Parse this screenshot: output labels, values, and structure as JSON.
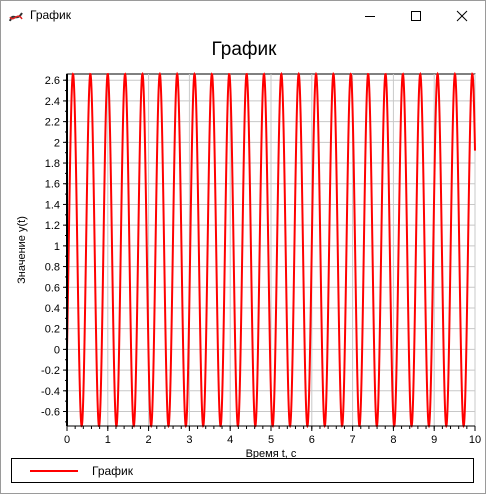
{
  "window": {
    "title": "График",
    "controls": [
      "minimize",
      "maximize",
      "close"
    ]
  },
  "chart_data": {
    "type": "line",
    "title": "График",
    "xlabel": "Время t, с",
    "ylabel": "Значение y(t)",
    "xlim": [
      0,
      10
    ],
    "ylim": [
      -0.74,
      2.66
    ],
    "xticks": [
      "0",
      "1",
      "2",
      "3",
      "4",
      "5",
      "6",
      "7",
      "8",
      "9",
      "10"
    ],
    "yticks": [
      "2.6",
      "2.4",
      "2.2",
      "2",
      "1.8",
      "1.6",
      "1.4",
      "1.2",
      "1",
      "0.8",
      "0.6",
      "0.4",
      "0.2",
      "0",
      "-0.2",
      "-0.4",
      "-0.6"
    ],
    "grid": true,
    "legend_position": "bottom",
    "series": [
      {
        "name": "График",
        "color": "#ff0000",
        "function": "0.96 + 1.7*sin(2*pi*2.35*t - 0.6)",
        "x_start": 0,
        "x_end": 10
      }
    ]
  },
  "legend": {
    "label": "График"
  }
}
